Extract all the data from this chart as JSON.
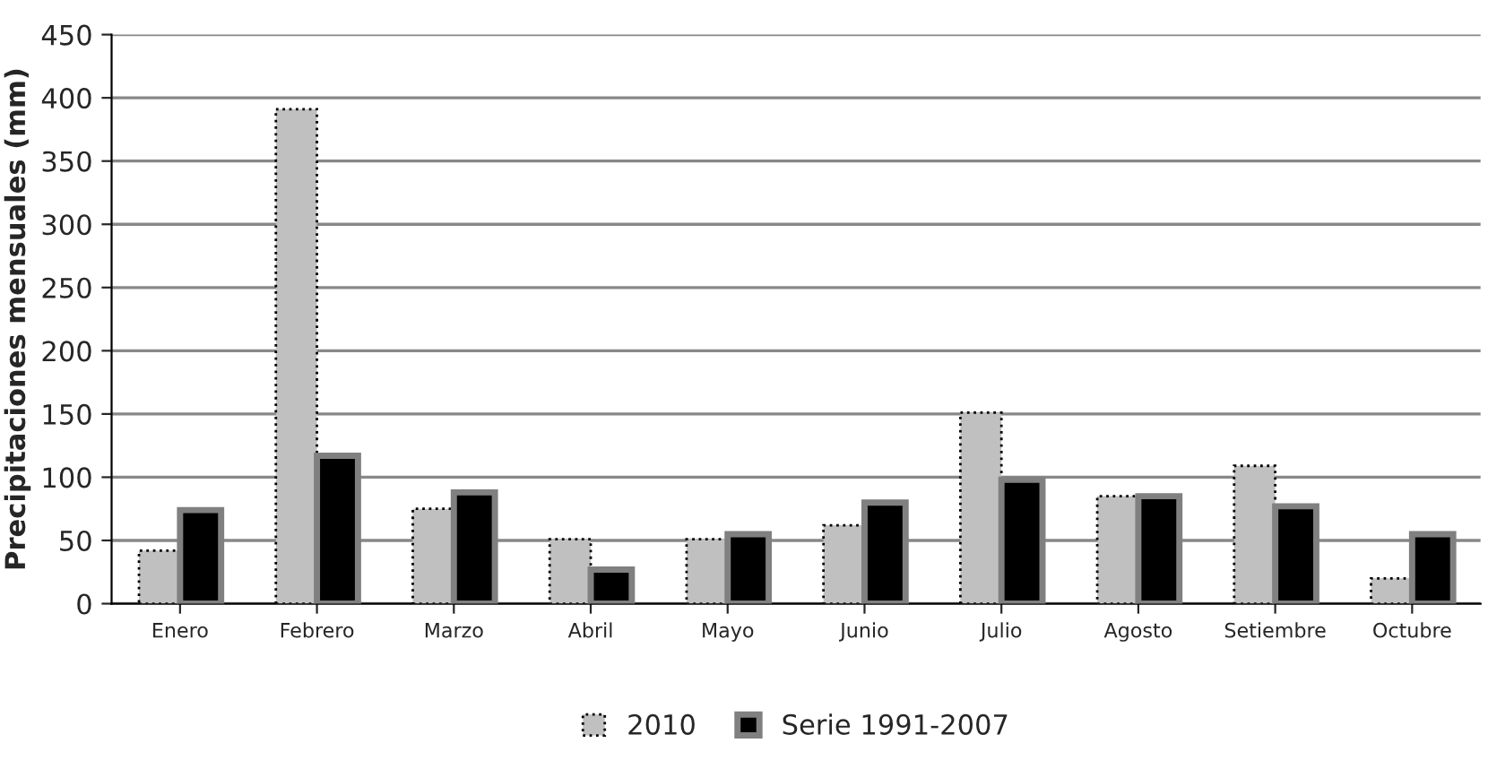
{
  "chart_data": {
    "type": "bar",
    "ylabel": "Precipitaciones mensuales (mm)",
    "categories": [
      "Enero",
      "Febrero",
      "Marzo",
      "Abril",
      "Mayo",
      "Junio",
      "Julio",
      "Agosto",
      "Setiembre",
      "Octubre"
    ],
    "series": [
      {
        "name": "2010",
        "color": "#c0c0c0",
        "values": [
          42,
          391,
          75,
          51,
          51,
          62,
          151,
          85,
          109,
          20
        ]
      },
      {
        "name": "Serie 1991-2007",
        "color": "#000000",
        "values": [
          74,
          117,
          88,
          27,
          55,
          80,
          98,
          85,
          77,
          55
        ]
      }
    ],
    "ylim": [
      0,
      450
    ],
    "yticks": [
      0,
      50,
      100,
      150,
      200,
      250,
      300,
      350,
      400,
      450
    ],
    "grid": "y",
    "legend": "bottom"
  }
}
